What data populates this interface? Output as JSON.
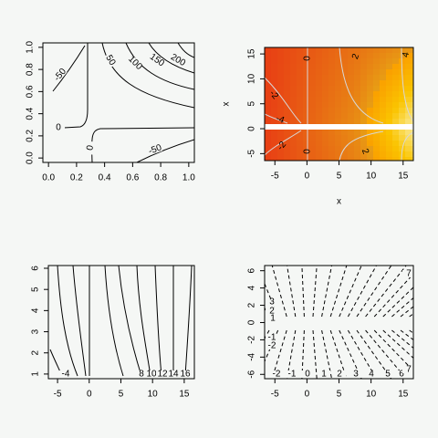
{
  "chart_data": [
    {
      "type": "contour",
      "xlim": [
        -0.04,
        1.04
      ],
      "ylim": [
        -0.04,
        1.04
      ],
      "xticks": [
        {
          "value": 0,
          "label": "0.0"
        },
        {
          "value": 0.2,
          "label": "0.2"
        },
        {
          "value": 0.4,
          "label": "0.4"
        },
        {
          "value": 0.6,
          "label": "0.6"
        },
        {
          "value": 0.8,
          "label": "0.8"
        },
        {
          "value": 1,
          "label": "1.0"
        }
      ],
      "yticks": [
        {
          "value": 0,
          "label": "0.0"
        },
        {
          "value": 0.2,
          "label": "0.2"
        },
        {
          "value": 0.4,
          "label": "0.4"
        },
        {
          "value": 0.6,
          "label": "0.6"
        },
        {
          "value": 0.8,
          "label": "0.8"
        },
        {
          "value": 1,
          "label": "1.0"
        }
      ],
      "levels": [
        -50,
        0,
        50,
        100,
        150,
        200
      ]
    },
    {
      "type": "image",
      "xlabel": "x",
      "ylabel": "x",
      "xlim": [
        -6.6,
        16.6
      ],
      "ylim": [
        -6.4,
        16.3
      ],
      "xticks": [
        -5,
        0,
        5,
        10,
        15
      ],
      "yticks": [
        -5,
        0,
        5,
        10,
        15
      ],
      "levels": [
        -4,
        -2,
        0,
        2,
        4
      ]
    },
    {
      "type": "contour",
      "xlim": [
        -6.45,
        16.6
      ],
      "ylim": [
        0.78,
        6.13
      ],
      "xticks": [
        -5,
        0,
        5,
        10,
        15
      ],
      "yticks": [
        1,
        2,
        3,
        4,
        5,
        6
      ],
      "levels": [
        -4,
        8,
        10,
        12,
        14,
        16
      ]
    },
    {
      "type": "dashed-contour",
      "xlim": [
        -6.6,
        16.6
      ],
      "ylim": [
        -6.5,
        6.6
      ],
      "xticks": [
        -5,
        0,
        5,
        10,
        15
      ],
      "yticks": [
        -6,
        -4,
        -2,
        0,
        2,
        4,
        6
      ],
      "levels": [
        -2,
        -1,
        0,
        1,
        2,
        3,
        4,
        5,
        6,
        7
      ]
    }
  ]
}
